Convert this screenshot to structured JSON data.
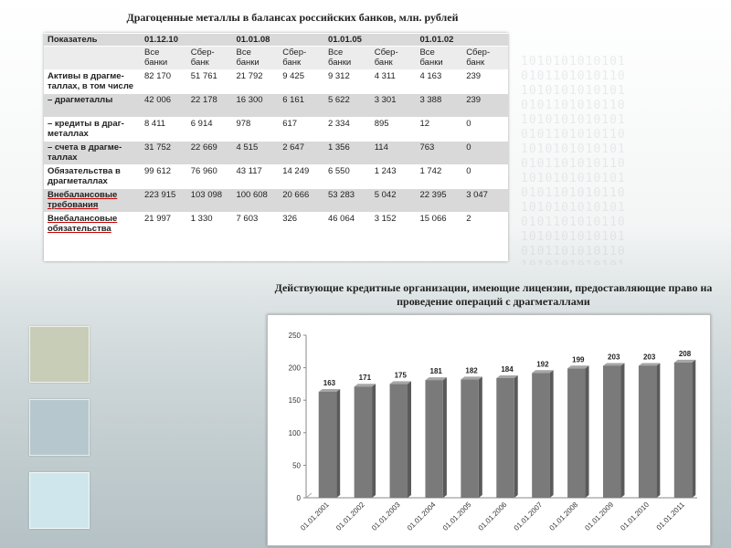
{
  "table_title": "Драгоценные металлы в балансах российских банков, млн. рублей",
  "table": {
    "header_top": [
      "Показатель",
      "01.12.10",
      "",
      "01.01.08",
      "",
      "01.01.05",
      "",
      "01.01.02",
      ""
    ],
    "header_sub": [
      "",
      "Все банки",
      "Сбер-банк",
      "Все банки",
      "Сбер-банк",
      "Все банки",
      "Сбер-банк",
      "Все банки",
      "Сбер-банк"
    ],
    "rows": [
      [
        "Активы в драгме-таллах, в том числе",
        "82 170",
        "51 761",
        "21 792",
        "9 425",
        "9 312",
        "4 311",
        "4 163",
        "239"
      ],
      [
        "– драгметаллы",
        "42 006",
        "22 178",
        "16 300",
        "6 161",
        "5 622",
        "3 301",
        "3 388",
        "239"
      ],
      [
        "– кредиты в драг-металлах",
        "8 411",
        "6 914",
        "978",
        "617",
        "2 334",
        "895",
        "12",
        "0"
      ],
      [
        "– счета в драгме-таллах",
        "31 752",
        "22 669",
        "4 515",
        "2 647",
        "1 356",
        "114",
        "763",
        "0"
      ],
      [
        "Обязательства в драгметаллах",
        "99 612",
        "76 960",
        "43 117",
        "14 249",
        "6 550",
        "1 243",
        "1 742",
        "0"
      ],
      [
        "Внебалансовые требования",
        "223 915",
        "103 098",
        "100 608",
        "20 666",
        "53 283",
        "5 042",
        "22 395",
        "3 047"
      ],
      [
        "Внебалансовые обязательства",
        "21 997",
        "1 330",
        "7 603",
        "326",
        "46 064",
        "3 152",
        "15 066",
        "2"
      ]
    ]
  },
  "chart_title": "Действующие кредитные организации, имеющие лицензии, предоставляющие право на проведение операций с драгметаллами",
  "chart_data": {
    "type": "bar",
    "title": "Действующие кредитные организации, имеющие лицензии, предоставляющие право на проведение операций с драгметаллами",
    "categories": [
      "01.01.2001",
      "01.01.2002",
      "01.01.2003",
      "01.01.2004",
      "01.01.2005",
      "01.01.2006",
      "01.01.2007",
      "01.01.2008",
      "01.01.2009",
      "01.01.2010",
      "01.01.2011"
    ],
    "values": [
      163,
      171,
      175,
      181,
      182,
      184,
      192,
      199,
      203,
      203,
      208
    ],
    "yticks": [
      0,
      50,
      100,
      150,
      200,
      250
    ],
    "ylim": [
      0,
      250
    ],
    "grid": false,
    "bar_color": "#7a7a7a"
  }
}
